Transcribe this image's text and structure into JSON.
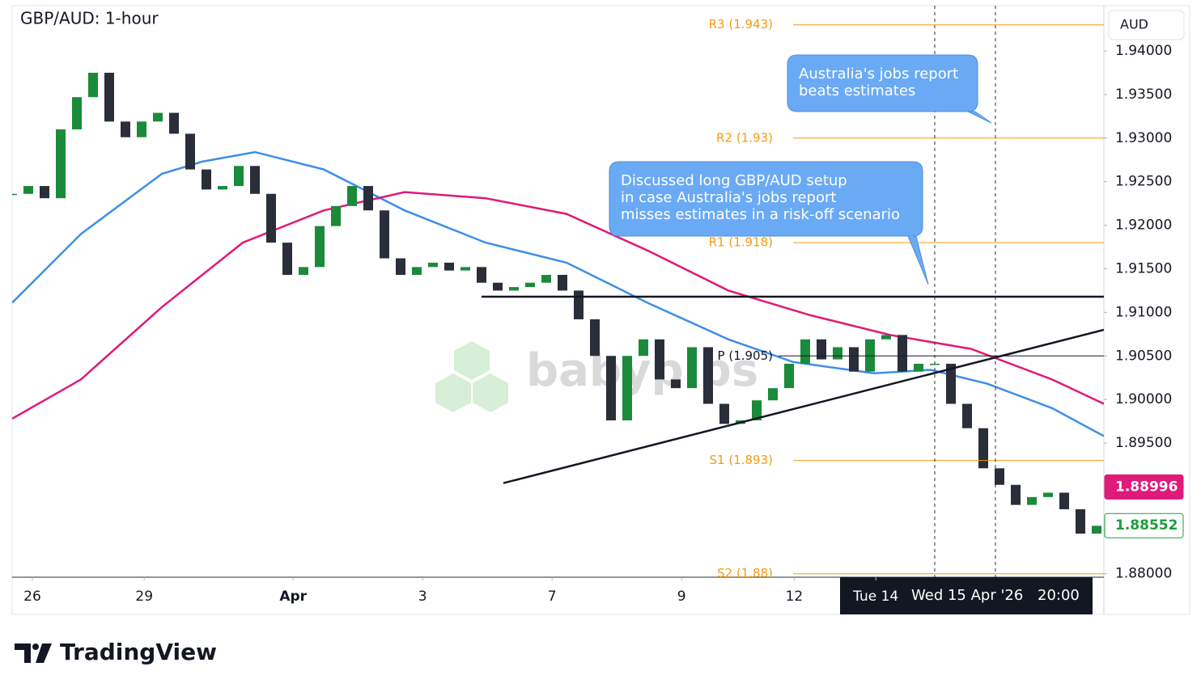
{
  "chart_data": {
    "type": "candlestick",
    "title": "GBP/AUD: 1-hour",
    "currency": "AUD",
    "watermark": "babypips",
    "brand": "TradingView",
    "xlim": [
      0,
      16.8625
    ],
    "ylim": [
      1.8796,
      1.9452
    ],
    "grid": false,
    "up_color": "#1b8a3a",
    "down_color": "#2a2e39",
    "xticks": [
      {
        "value": 0.3125,
        "label": "26"
      },
      {
        "value": 2.04,
        "label": "29"
      },
      {
        "value": 4.34,
        "label": "Apr"
      },
      {
        "value": 6.34,
        "label": "3"
      },
      {
        "value": 8.34,
        "label": "7"
      },
      {
        "value": 10.34,
        "label": "9"
      },
      {
        "value": 12.08,
        "label": "12"
      },
      {
        "value": 13.34,
        "label": "Tue 14"
      }
    ],
    "yticks": [
      {
        "value": 1.88,
        "label": "1.88000"
      },
      {
        "value": 1.885,
        "label": "1.88500"
      },
      {
        "value": 1.89,
        "label": "1.89000"
      },
      {
        "value": 1.895,
        "label": "1.89500"
      },
      {
        "value": 1.9,
        "label": "1.90000"
      },
      {
        "value": 1.905,
        "label": "1.90500"
      },
      {
        "value": 1.91,
        "label": "1.91000"
      },
      {
        "value": 1.915,
        "label": "1.91500"
      },
      {
        "value": 1.92,
        "label": "1.92000"
      },
      {
        "value": 1.925,
        "label": "1.92500"
      },
      {
        "value": 1.93,
        "label": "1.93000"
      },
      {
        "value": 1.935,
        "label": "1.93500"
      },
      {
        "value": 1.94,
        "label": "1.94000"
      }
    ],
    "x": [
      0,
      0.25,
      0.5,
      0.75,
      1,
      1.25,
      1.5,
      1.75,
      2,
      2.25,
      2.5,
      2.75,
      3,
      3.25,
      3.5,
      3.75,
      4,
      4.25,
      4.5,
      4.75,
      5,
      5.25,
      5.5,
      5.75,
      6,
      6.25,
      6.5,
      6.75,
      7,
      7.25,
      7.5,
      7.75,
      8,
      8.25,
      8.5,
      8.75,
      9,
      9.25,
      9.5,
      9.75,
      10,
      10.25,
      10.5,
      10.75,
      11,
      11.25,
      11.5,
      11.75,
      12,
      12.25,
      12.5,
      12.75,
      13,
      13.25,
      13.5,
      13.75,
      14,
      14.25,
      14.5,
      14.75,
      15,
      15.25,
      15.5,
      15.75,
      16,
      16.25,
      16.5,
      16.75
    ],
    "values": [
      1.9236,
      1.9245,
      1.9231,
      1.931,
      1.9347,
      1.9375,
      1.9319,
      1.9301,
      1.9319,
      1.9329,
      1.9305,
      1.9264,
      1.9241,
      1.9245,
      1.9268,
      1.9236,
      1.918,
      1.9143,
      1.9152,
      1.9199,
      1.9222,
      1.9245,
      1.9217,
      1.9162,
      1.9143,
      1.9152,
      1.9157,
      1.9148,
      1.9152,
      1.9134,
      1.9125,
      1.9129,
      1.9134,
      1.9143,
      1.9125,
      1.9092,
      1.905,
      1.8976,
      1.905,
      1.9069,
      1.9023,
      1.9013,
      1.906,
      1.8995,
      1.8972,
      1.8976,
      1.8999,
      1.9013,
      1.9041,
      1.9069,
      1.9046,
      1.906,
      1.9032,
      1.9069,
      1.9074,
      1.9032,
      1.9041,
      1.9041,
      1.8995,
      1.8967,
      1.8921,
      1.8902,
      1.8879,
      1.8888,
      1.8893,
      1.8874,
      1.8846,
      1.8855
    ],
    "overlays": [
      {
        "color": "#3d8ee8",
        "x": [
          0,
          1.0625,
          2.3125,
          2.9375,
          3.75,
          4.8125,
          6.0625,
          7.3125,
          8.5625,
          9.8125,
          11.0625,
          12.0625,
          13.3125,
          14.1875,
          15.0625,
          16.0625,
          16.8625
        ],
        "values": [
          1.9111,
          1.919,
          1.9259,
          1.9273,
          1.9284,
          1.9264,
          1.9217,
          1.918,
          1.9157,
          1.9111,
          1.9069,
          1.9043,
          1.903,
          1.9034,
          1.9018,
          1.899,
          1.8958
        ]
      },
      {
        "color": "#e0197a",
        "x": [
          0,
          1.0625,
          2.3125,
          3.5625,
          4.8125,
          6.0625,
          7.3125,
          8.5625,
          9.8125,
          11.0625,
          12.3125,
          13.5625,
          14.8125,
          16.0625,
          16.8625
        ],
        "values": [
          1.8978,
          1.9023,
          1.9106,
          1.918,
          1.9217,
          1.9238,
          1.9231,
          1.9213,
          1.9171,
          1.9125,
          1.9097,
          1.9074,
          1.9058,
          1.9023,
          1.8995
        ]
      }
    ],
    "trendlines": [
      {
        "x": [
          7.25,
          16.8625
        ],
        "values": [
          1.9118,
          1.9118
        ]
      },
      {
        "x": [
          7.5875,
          16.8625
        ],
        "values": [
          1.8904,
          1.908
        ]
      }
    ],
    "pivot_color": "#f39c12",
    "pivots": [
      {
        "label": "R3 (1.943)",
        "value": 1.943
      },
      {
        "label": "R2 (1.93)",
        "value": 1.93
      },
      {
        "label": "R1 (1.918)",
        "value": 1.918
      },
      {
        "label": "P (1.905)",
        "value": 1.905
      },
      {
        "label": "S1 (1.893)",
        "value": 1.893
      },
      {
        "label": "S2 (1.88)",
        "value": 1.88
      }
    ],
    "price_tags": [
      {
        "value": 1.88996,
        "label": "1.88996",
        "color": "#e0197a"
      },
      {
        "value": 1.88552,
        "label": "1.88552",
        "color": "#1b9e3a"
      }
    ],
    "crosshair_label": [
      "Wed 15 Apr '26",
      "20:00"
    ],
    "callouts": [
      {
        "lines": [
          "Australia's jobs report",
          "beats estimates"
        ]
      },
      {
        "lines": [
          "Discussed long GBP/AUD setup",
          "in case Australia's jobs report",
          "misses estimates in a risk-off scenario"
        ]
      }
    ]
  }
}
